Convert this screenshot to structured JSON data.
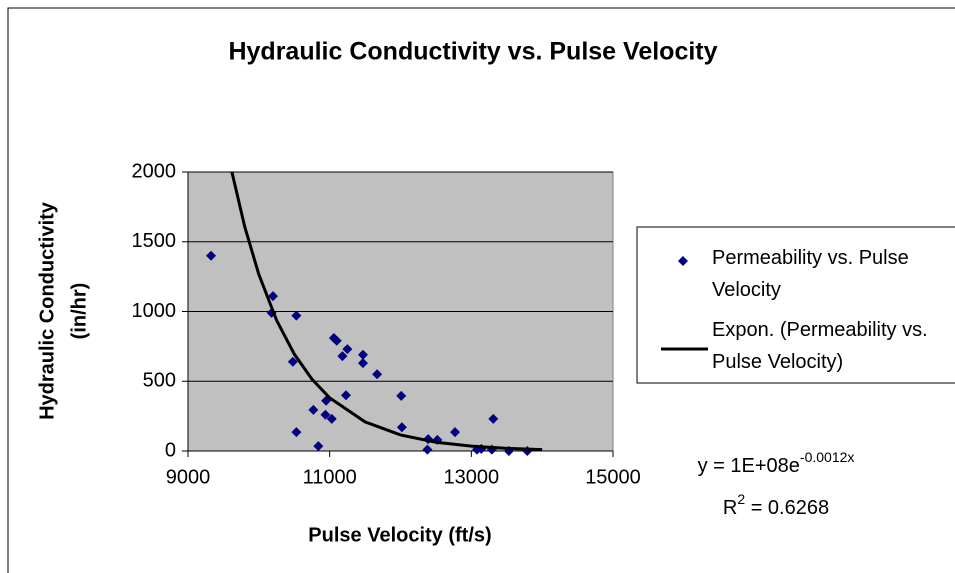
{
  "chart_data": {
    "type": "scatter",
    "title": "Hydraulic Conductivity vs. Pulse Velocity",
    "xlabel": "Pulse Velocity (ft/s)",
    "ylabel": [
      "Hydraulic Conductivity",
      "(in/hr)"
    ],
    "xlim": [
      9000,
      15000
    ],
    "xticks": [
      9000,
      11000,
      13000,
      15000
    ],
    "ylim": [
      0,
      2000
    ],
    "yticks": [
      0,
      500,
      1000,
      1500,
      2000
    ],
    "grid": true,
    "legend": "right",
    "series": [
      {
        "name": "Permeability vs. Pulse Velocity",
        "color": "#000080",
        "x": [
          9325,
          10200,
          10180,
          10530,
          10480,
          10530,
          10770,
          10840,
          10940,
          10950,
          11030,
          11060,
          11100,
          11180,
          11250,
          11230,
          11470,
          11470,
          11670,
          12010,
          12020,
          12380,
          12390,
          12520,
          12770,
          13080,
          13140,
          13310,
          13290,
          13530,
          13790
        ],
        "values": [
          1400,
          1110,
          990,
          970,
          640,
          135,
          295,
          35,
          260,
          360,
          230,
          810,
          790,
          680,
          730,
          400,
          690,
          630,
          550,
          395,
          170,
          10,
          85,
          80,
          135,
          10,
          15,
          230,
          10,
          0,
          0
        ]
      }
    ],
    "trendline": {
      "name": "Expon. (Permeability vs. Pulse Velocity)",
      "color": "#000000",
      "x": [
        9620,
        9800,
        10000,
        10250,
        10500,
        10750,
        11000,
        11500,
        12000,
        12500,
        13000,
        13500,
        14000
      ],
      "values": [
        2000,
        1609,
        1266,
        938,
        695,
        515,
        381,
        209,
        115,
        63,
        35,
        19,
        10
      ]
    },
    "equation": {
      "base": "y = 1E+08e",
      "exponent": "-0.0012x"
    },
    "r_squared": {
      "base": "R",
      "exponent": "2",
      "value": " = 0.6268"
    }
  }
}
